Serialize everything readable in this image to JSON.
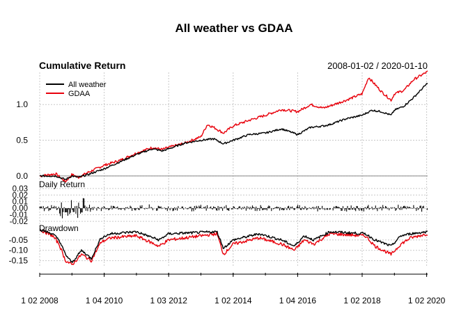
{
  "chart_data": {
    "type": "line",
    "title": "All weather vs GDAA",
    "date_range_label": "2008-01-02 / 2020-01-10",
    "x_tick_labels": [
      "1 02 2008",
      "1 04 2010",
      "1 03 2012",
      "1 02 2014",
      "1 04 2016",
      "1 02 2018",
      "1 02 2020"
    ],
    "x_tick_years": [
      2008.0,
      2010.0,
      2012.0,
      2014.0,
      2016.0,
      2018.0,
      2020.0
    ],
    "x_range": [
      2008.0,
      2020.03
    ],
    "legend": {
      "placement": "top-left",
      "entries": [
        {
          "name": "All weather",
          "color": "#000000"
        },
        {
          "name": "GDAA",
          "color": "#e8000b"
        }
      ]
    },
    "panels": [
      {
        "id": "cumulative",
        "label": "Cumulative Return",
        "ylim": [
          -0.05,
          1.45
        ],
        "y_ticks": [
          "0.0",
          "0.5",
          "1.0"
        ],
        "y_tick_values": [
          0.0,
          0.5,
          1.0
        ],
        "grid": true,
        "series": [
          {
            "name": "All weather",
            "color": "#000000",
            "x": [
              2008.0,
              2008.5,
              2008.8,
              2009.0,
              2009.2,
              2009.5,
              2010.0,
              2010.5,
              2011.0,
              2011.5,
              2011.8,
              2012.0,
              2012.5,
              2013.0,
              2013.4,
              2013.7,
              2014.0,
              2014.5,
              2015.0,
              2015.5,
              2016.0,
              2016.4,
              2016.8,
              2017.0,
              2017.5,
              2018.0,
              2018.3,
              2018.6,
              2018.9,
              2019.0,
              2019.3,
              2019.6,
              2020.03
            ],
            "values": [
              0.0,
              0.0,
              -0.05,
              0.0,
              -0.02,
              0.02,
              0.1,
              0.2,
              0.3,
              0.38,
              0.35,
              0.38,
              0.46,
              0.5,
              0.52,
              0.45,
              0.5,
              0.58,
              0.6,
              0.66,
              0.58,
              0.68,
              0.7,
              0.72,
              0.8,
              0.85,
              0.92,
              0.9,
              0.85,
              0.92,
              0.98,
              1.1,
              1.3
            ]
          },
          {
            "name": "GDAA",
            "color": "#e8000b",
            "x": [
              2008.0,
              2008.5,
              2008.8,
              2009.0,
              2009.2,
              2009.5,
              2010.0,
              2010.5,
              2011.0,
              2011.5,
              2011.8,
              2012.0,
              2012.5,
              2013.0,
              2013.2,
              2013.4,
              2013.7,
              2014.0,
              2014.5,
              2015.0,
              2015.5,
              2016.0,
              2016.4,
              2016.8,
              2017.0,
              2017.5,
              2018.0,
              2018.2,
              2018.4,
              2018.6,
              2018.9,
              2019.0,
              2019.3,
              2019.6,
              2020.03
            ],
            "values": [
              0.0,
              0.03,
              -0.08,
              0.02,
              -0.02,
              0.05,
              0.15,
              0.22,
              0.32,
              0.4,
              0.37,
              0.4,
              0.46,
              0.55,
              0.72,
              0.68,
              0.6,
              0.7,
              0.78,
              0.85,
              0.93,
              0.9,
              1.0,
              0.95,
              0.98,
              1.06,
              1.15,
              1.38,
              1.28,
              1.18,
              1.06,
              1.15,
              1.2,
              1.35,
              1.46
            ]
          }
        ]
      },
      {
        "id": "daily",
        "label": "Daily Return",
        "ylim": [
          -0.022,
          0.033
        ],
        "y_ticks": [
          "0.03",
          "0.02",
          "0.01",
          "0.00",
          "-0.01",
          "-0.02"
        ],
        "y_tick_values": [
          0.03,
          0.02,
          0.01,
          0.0,
          -0.01,
          -0.02
        ],
        "grid": true,
        "series_name": "All weather",
        "typical_amplitude": 0.006,
        "high_volatility_period": [
          2008.6,
          2009.4
        ]
      },
      {
        "id": "drawdown",
        "label": "Drawdown",
        "ylim": [
          -0.175,
          0.0
        ],
        "y_ticks": [
          "-0.05",
          "-0.10",
          "-0.15"
        ],
        "y_tick_values": [
          -0.05,
          -0.1,
          -0.15
        ],
        "grid": true,
        "series": [
          {
            "name": "All weather",
            "color": "#000000",
            "x": [
              2008.0,
              2008.4,
              2008.6,
              2008.8,
              2009.0,
              2009.3,
              2009.6,
              2009.9,
              2010.2,
              2011.0,
              2011.7,
              2012.0,
              2013.5,
              2013.7,
              2014.0,
              2014.8,
              2015.5,
              2015.9,
              2016.2,
              2016.5,
              2017.0,
              2018.1,
              2018.4,
              2018.9,
              2019.2,
              2019.5,
              2020.03
            ],
            "values": [
              0.0,
              -0.02,
              -0.05,
              -0.12,
              -0.16,
              -0.1,
              -0.14,
              -0.04,
              -0.02,
              -0.01,
              -0.05,
              -0.02,
              -0.01,
              -0.09,
              -0.05,
              -0.02,
              -0.05,
              -0.08,
              -0.03,
              -0.05,
              -0.01,
              -0.02,
              -0.05,
              -0.08,
              -0.03,
              -0.02,
              -0.01
            ]
          },
          {
            "name": "GDAA",
            "color": "#e8000b",
            "x": [
              2008.0,
              2008.4,
              2008.6,
              2008.8,
              2009.0,
              2009.3,
              2009.6,
              2009.9,
              2010.2,
              2011.0,
              2011.7,
              2012.0,
              2013.5,
              2013.7,
              2014.0,
              2014.8,
              2015.5,
              2015.9,
              2016.2,
              2016.5,
              2017.0,
              2018.1,
              2018.4,
              2018.9,
              2019.2,
              2019.5,
              2020.03
            ],
            "values": [
              0.0,
              -0.03,
              -0.07,
              -0.15,
              -0.17,
              -0.12,
              -0.15,
              -0.06,
              -0.04,
              -0.03,
              -0.08,
              -0.05,
              -0.02,
              -0.12,
              -0.07,
              -0.04,
              -0.07,
              -0.1,
              -0.05,
              -0.07,
              -0.02,
              -0.03,
              -0.08,
              -0.12,
              -0.07,
              -0.04,
              -0.02
            ]
          }
        ]
      }
    ]
  }
}
